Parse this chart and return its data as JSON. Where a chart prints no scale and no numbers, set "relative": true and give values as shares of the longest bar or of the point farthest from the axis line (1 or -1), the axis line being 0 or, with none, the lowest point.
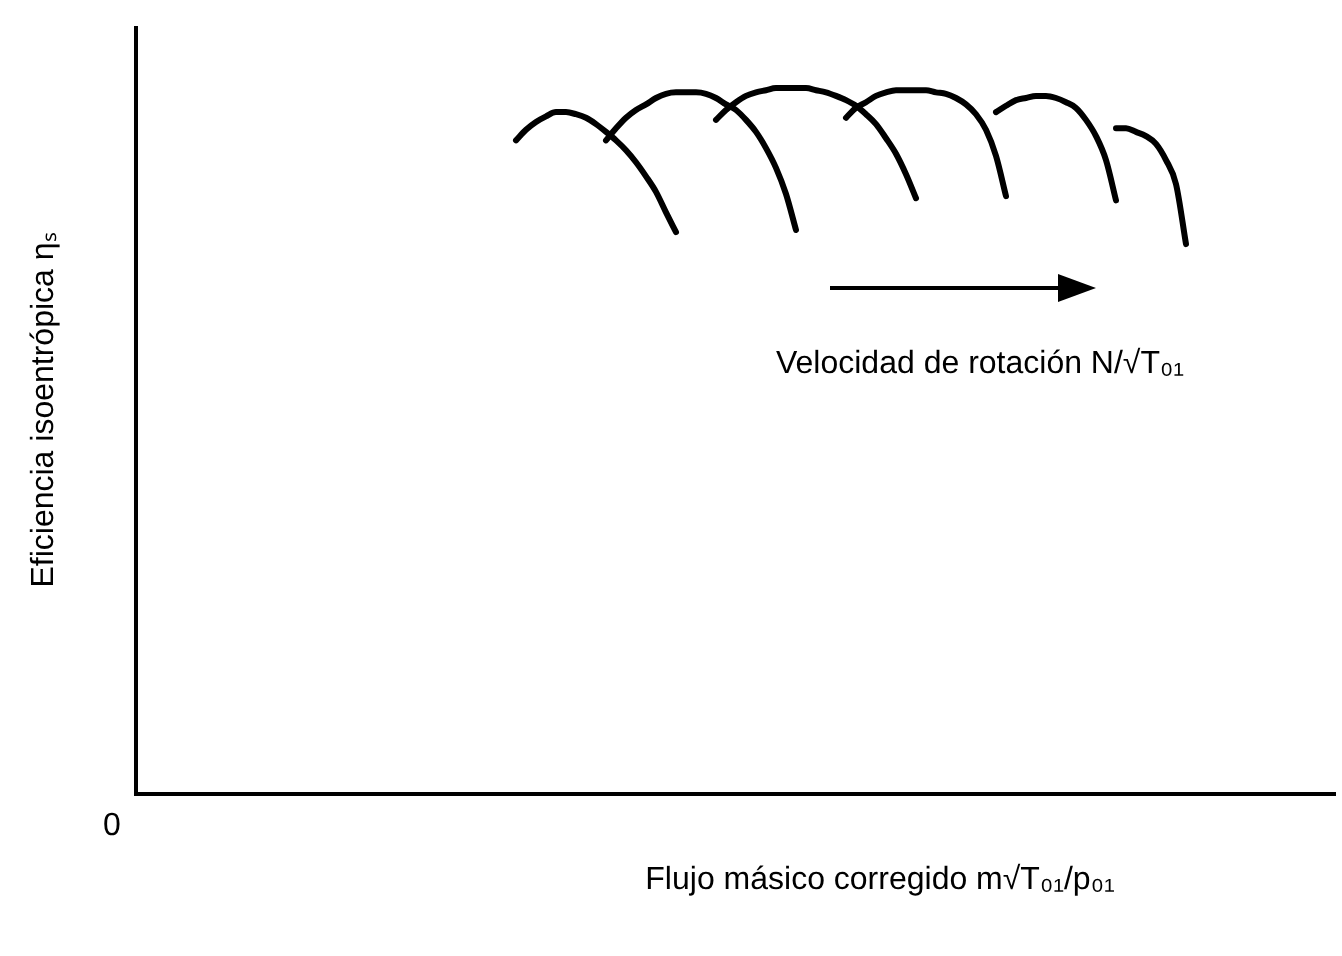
{
  "chart_data": {
    "type": "line",
    "relative": true,
    "marker": "none",
    "xlabel": "Flujo másico corregido m√T₀₁/p₀₁",
    "ylabel": "Eficiencia isoentrópica ηₛ",
    "annotations": [
      "Velocidad de rotación N/√T₀₁",
      "0"
    ],
    "categories": [
      null,
      null,
      null,
      null,
      null,
      null,
      null,
      null,
      null,
      null,
      null,
      null,
      null,
      null,
      null,
      null,
      null,
      null,
      null,
      null,
      null,
      null,
      null,
      null,
      null,
      null,
      null,
      null,
      null,
      null,
      null,
      null,
      null,
      null,
      null,
      null,
      null,
      null,
      null,
      null,
      null,
      null,
      null,
      null,
      null,
      null,
      null,
      null,
      null,
      null,
      null,
      null,
      null,
      null,
      null,
      null,
      null,
      null,
      null,
      null,
      null,
      null,
      null,
      null,
      null,
      null,
      null,
      null,
      null,
      null,
      null,
      null,
      null,
      null,
      null,
      null,
      null,
      null,
      null,
      null,
      null,
      null,
      null,
      null,
      null,
      null,
      null,
      null,
      null,
      null,
      null,
      null,
      null,
      null,
      null,
      null,
      null,
      null,
      null,
      null,
      null,
      null,
      null,
      null,
      null,
      null,
      null,
      null,
      null,
      null,
      null,
      null,
      null,
      null,
      null,
      null,
      null,
      null,
      null,
      null,
      null
    ],
    "series": [
      {
        "color": "#000000",
        "values": [
          null,
          null,
          null,
          null,
          null,
          null,
          null,
          null,
          null,
          null,
          null,
          null,
          null,
          null,
          null,
          null,
          null,
          null,
          null,
          null,
          null,
          null,
          null,
          null,
          null,
          null,
          null,
          null,
          null,
          null,
          null,
          null,
          null,
          null,
          null,
          null,
          null,
          null,
          0.926,
          0.941,
          0.952,
          0.96,
          0.966,
          0.966,
          0.963,
          0.958,
          0.949,
          0.938,
          0.926,
          0.912,
          0.895,
          0.875,
          0.853,
          0.824,
          0.796,
          null,
          null,
          null,
          null,
          null,
          null,
          null,
          null,
          null,
          null,
          null,
          null,
          null,
          null,
          null,
          null,
          null,
          null,
          null,
          null,
          null,
          null,
          null,
          null,
          null,
          null,
          null,
          null,
          null,
          null,
          null,
          null,
          null,
          null,
          null,
          null,
          null,
          null,
          null,
          null,
          null,
          null,
          null,
          null,
          null,
          null,
          null,
          null,
          null,
          null,
          null,
          null,
          null,
          null,
          null,
          null,
          null,
          null,
          null,
          null,
          null,
          null,
          null,
          null,
          null,
          null
        ]
      },
      {
        "color": "#000000",
        "values": [
          null,
          null,
          null,
          null,
          null,
          null,
          null,
          null,
          null,
          null,
          null,
          null,
          null,
          null,
          null,
          null,
          null,
          null,
          null,
          null,
          null,
          null,
          null,
          null,
          null,
          null,
          null,
          null,
          null,
          null,
          null,
          null,
          null,
          null,
          null,
          null,
          null,
          null,
          null,
          null,
          null,
          null,
          null,
          null,
          null,
          null,
          null,
          0.926,
          0.943,
          0.958,
          0.969,
          0.977,
          0.986,
          0.992,
          0.994,
          0.994,
          0.994,
          0.992,
          0.986,
          0.977,
          0.969,
          0.955,
          0.938,
          0.915,
          0.887,
          0.85,
          0.799,
          null,
          null,
          null,
          null,
          null,
          null,
          null,
          null,
          null,
          null,
          null,
          null,
          null,
          null,
          null,
          null,
          null,
          null,
          null,
          null,
          null,
          null,
          null,
          null,
          null,
          null,
          null,
          null,
          null,
          null,
          null,
          null,
          null,
          null,
          null,
          null,
          null,
          null,
          null,
          null,
          null,
          null,
          null,
          null,
          null,
          null,
          null,
          null,
          null,
          null,
          null,
          null,
          null,
          null
        ]
      },
      {
        "color": "#000000",
        "values": [
          null,
          null,
          null,
          null,
          null,
          null,
          null,
          null,
          null,
          null,
          null,
          null,
          null,
          null,
          null,
          null,
          null,
          null,
          null,
          null,
          null,
          null,
          null,
          null,
          null,
          null,
          null,
          null,
          null,
          null,
          null,
          null,
          null,
          null,
          null,
          null,
          null,
          null,
          null,
          null,
          null,
          null,
          null,
          null,
          null,
          null,
          null,
          null,
          null,
          null,
          null,
          null,
          null,
          null,
          null,
          null,
          null,
          null,
          0.955,
          0.969,
          0.98,
          0.989,
          0.994,
          0.997,
          1,
          1,
          1,
          1,
          0.997,
          0.994,
          0.989,
          0.983,
          0.975,
          0.963,
          0.949,
          0.929,
          0.907,
          0.878,
          0.844,
          null,
          null,
          null,
          null,
          null,
          null,
          null,
          null,
          null,
          null,
          null,
          null,
          null,
          null,
          null,
          null,
          null,
          null,
          null,
          null,
          null,
          null,
          null,
          null,
          null,
          null,
          null,
          null,
          null,
          null,
          null,
          null,
          null,
          null,
          null,
          null,
          null,
          null,
          null,
          null,
          null,
          null
        ]
      },
      {
        "color": "#000000",
        "values": [
          null,
          null,
          null,
          null,
          null,
          null,
          null,
          null,
          null,
          null,
          null,
          null,
          null,
          null,
          null,
          null,
          null,
          null,
          null,
          null,
          null,
          null,
          null,
          null,
          null,
          null,
          null,
          null,
          null,
          null,
          null,
          null,
          null,
          null,
          null,
          null,
          null,
          null,
          null,
          null,
          null,
          null,
          null,
          null,
          null,
          null,
          null,
          null,
          null,
          null,
          null,
          null,
          null,
          null,
          null,
          null,
          null,
          null,
          null,
          null,
          null,
          null,
          null,
          null,
          null,
          null,
          null,
          null,
          null,
          null,
          null,
          0.958,
          0.972,
          0.98,
          0.989,
          0.994,
          0.997,
          0.997,
          0.997,
          0.997,
          0.994,
          0.992,
          0.986,
          0.977,
          0.963,
          0.941,
          0.904,
          0.847,
          null,
          null,
          null,
          null,
          null,
          null,
          null,
          null,
          null,
          null,
          null,
          null,
          null,
          null,
          null,
          null,
          null,
          null,
          null,
          null,
          null,
          null,
          null,
          null,
          null,
          null,
          null,
          null,
          null,
          null,
          null,
          null,
          null
        ]
      },
      {
        "color": "#000000",
        "values": [
          null,
          null,
          null,
          null,
          null,
          null,
          null,
          null,
          null,
          null,
          null,
          null,
          null,
          null,
          null,
          null,
          null,
          null,
          null,
          null,
          null,
          null,
          null,
          null,
          null,
          null,
          null,
          null,
          null,
          null,
          null,
          null,
          null,
          null,
          null,
          null,
          null,
          null,
          null,
          null,
          null,
          null,
          null,
          null,
          null,
          null,
          null,
          null,
          null,
          null,
          null,
          null,
          null,
          null,
          null,
          null,
          null,
          null,
          null,
          null,
          null,
          null,
          null,
          null,
          null,
          null,
          null,
          null,
          null,
          null,
          null,
          null,
          null,
          null,
          null,
          null,
          null,
          null,
          null,
          null,
          null,
          null,
          null,
          null,
          null,
          null,
          0.966,
          0.975,
          0.983,
          0.986,
          0.989,
          0.989,
          0.986,
          0.98,
          0.972,
          0.955,
          0.932,
          0.898,
          0.841,
          null,
          null,
          null,
          null,
          null,
          null,
          null,
          null,
          null,
          null,
          null,
          null,
          null,
          null,
          null,
          null,
          null,
          null,
          null,
          null,
          null,
          null
        ]
      },
      {
        "color": "#000000",
        "values": [
          null,
          null,
          null,
          null,
          null,
          null,
          null,
          null,
          null,
          null,
          null,
          null,
          null,
          null,
          null,
          null,
          null,
          null,
          null,
          null,
          null,
          null,
          null,
          null,
          null,
          null,
          null,
          null,
          null,
          null,
          null,
          null,
          null,
          null,
          null,
          null,
          null,
          null,
          null,
          null,
          null,
          null,
          null,
          null,
          null,
          null,
          null,
          null,
          null,
          null,
          null,
          null,
          null,
          null,
          null,
          null,
          null,
          null,
          null,
          null,
          null,
          null,
          null,
          null,
          null,
          null,
          null,
          null,
          null,
          null,
          null,
          null,
          null,
          null,
          null,
          null,
          null,
          null,
          null,
          null,
          null,
          null,
          null,
          null,
          null,
          null,
          null,
          null,
          null,
          null,
          null,
          null,
          null,
          null,
          null,
          null,
          null,
          null,
          0.943,
          0.943,
          0.938,
          0.932,
          0.921,
          0.898,
          0.864,
          0.779,
          null,
          null,
          null,
          null,
          null,
          null,
          null,
          null,
          null,
          null,
          null,
          null,
          null,
          null,
          null
        ]
      }
    ]
  }
}
